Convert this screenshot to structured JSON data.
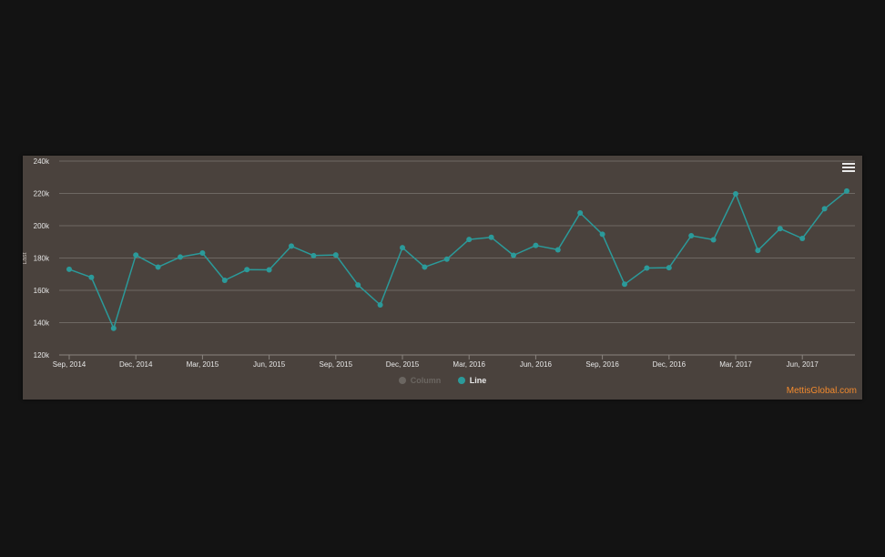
{
  "credit": "MettisGlobal.com",
  "colors": {
    "line": "#2b9a9a",
    "grid": "#6e6863",
    "axis_text": "#e6e6e6",
    "panel_bg": "#4a423d",
    "credit": "#f28a2e"
  },
  "legend": [
    {
      "name": "Column",
      "visible": false
    },
    {
      "name": "Line",
      "visible": true
    }
  ],
  "chart_data": {
    "type": "line",
    "title": "",
    "xlabel": "",
    "ylabel": "Last",
    "ylim": [
      120000,
      240000
    ],
    "yticks": [
      120000,
      140000,
      160000,
      180000,
      200000,
      220000,
      240000
    ],
    "ytick_labels": [
      "120k",
      "140k",
      "160k",
      "180k",
      "200k",
      "220k",
      "240k"
    ],
    "xtick_labels": [
      "Sep, 2014",
      "Dec, 2014",
      "Mar, 2015",
      "Jun, 2015",
      "Sep, 2015",
      "Dec, 2015",
      "Mar, 2016",
      "Jun, 2016",
      "Sep, 2016",
      "Dec, 2016",
      "Mar, 2017",
      "Jun, 2017"
    ],
    "grid": true,
    "legend_position": "bottom",
    "x": [
      "Sep, 2014",
      "Oct, 2014",
      "Nov, 2014",
      "Dec, 2014",
      "Jan, 2015",
      "Feb, 2015",
      "Mar, 2015",
      "Apr, 2015",
      "May, 2015",
      "Jun, 2015",
      "Jul, 2015",
      "Aug, 2015",
      "Sep, 2015",
      "Oct, 2015",
      "Nov, 2015",
      "Dec, 2015",
      "Jan, 2016",
      "Feb, 2016",
      "Mar, 2016",
      "Apr, 2016",
      "May, 2016",
      "Jun, 2016",
      "Jul, 2016",
      "Aug, 2016",
      "Sep, 2016",
      "Oct, 2016",
      "Nov, 2016",
      "Dec, 2016",
      "Jan, 2017",
      "Feb, 2017",
      "Mar, 2017",
      "Apr, 2017",
      "May, 2017",
      "Jun, 2017",
      "Jul, 2017",
      "Aug, 2017"
    ],
    "series": [
      {
        "name": "Line",
        "values": [
          173000,
          168000,
          136500,
          181800,
          174400,
          180600,
          183100,
          166200,
          172800,
          172700,
          187400,
          181500,
          181900,
          163300,
          151000,
          186400,
          174400,
          179300,
          191500,
          192800,
          181700,
          187800,
          185100,
          207900,
          194700,
          163800,
          173800,
          174000,
          193800,
          191300,
          219700,
          184700,
          198200,
          192100,
          210500,
          221500
        ]
      }
    ]
  }
}
